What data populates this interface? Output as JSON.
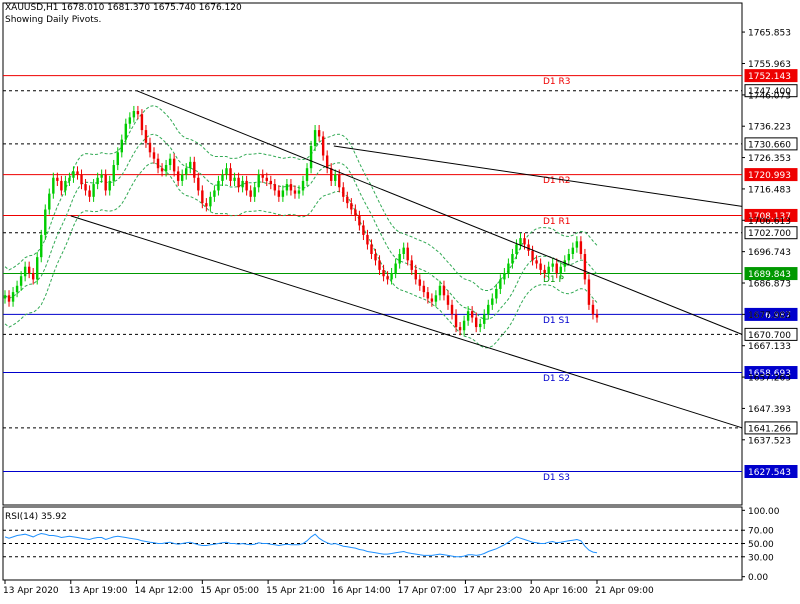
{
  "header": {
    "symbol_line": "XAUUSD,H1  1678.010 1681.370 1675.740 1676.120",
    "subtitle": "Showing Daily Pivots."
  },
  "colors": {
    "bull": "#00cc00",
    "bear": "#ee0000",
    "bands": "#33aa55",
    "resistance": "#ee0000",
    "support": "#0000cc",
    "pivot": "#009900",
    "trendline": "#000000"
  },
  "chart_data": [
    {
      "type": "candlestick",
      "title": "XAUUSD,H1",
      "ylim": [
        1617.0,
        1775.0
      ],
      "y_ticks": [
        "1765.853",
        "1755.963",
        "1746.073",
        "1736.223",
        "1726.353",
        "1716.483",
        "1706.613",
        "1696.743",
        "1686.873",
        "1677.003",
        "1667.133",
        "1657.263",
        "1647.393",
        "1637.523"
      ],
      "x_ticks": [
        "13 Apr 2020",
        "13 Apr 19:00",
        "14 Apr 12:00",
        "15 Apr 05:00",
        "15 Apr 21:00",
        "16 Apr 14:00",
        "17 Apr 07:00",
        "17 Apr 23:00",
        "20 Apr 16:00",
        "21 Apr 09:00"
      ],
      "close": [
        1683,
        1681,
        1684,
        1686,
        1689,
        1692,
        1690,
        1688,
        1695,
        1702,
        1710,
        1715,
        1720,
        1719,
        1716,
        1719,
        1720,
        1722,
        1721,
        1718,
        1716,
        1714,
        1718,
        1720,
        1721,
        1716,
        1719,
        1724,
        1728,
        1732,
        1737,
        1739,
        1741,
        1740,
        1735,
        1731,
        1728,
        1726,
        1723,
        1722,
        1724,
        1726,
        1722,
        1719,
        1721,
        1723,
        1725,
        1720,
        1716,
        1712,
        1711,
        1714,
        1716,
        1719,
        1721,
        1723,
        1719,
        1720,
        1717,
        1719,
        1716,
        1714,
        1717,
        1721,
        1720,
        1719,
        1718,
        1716,
        1714,
        1716,
        1718,
        1716,
        1715,
        1716,
        1719,
        1723,
        1730,
        1735,
        1733,
        1727,
        1723,
        1719,
        1721,
        1717,
        1714,
        1712,
        1710,
        1708,
        1705,
        1702,
        1699,
        1696,
        1694,
        1691,
        1689,
        1688,
        1690,
        1693,
        1696,
        1698,
        1694,
        1691,
        1688,
        1686,
        1684,
        1682,
        1681,
        1683,
        1686,
        1683,
        1680,
        1677,
        1673,
        1672,
        1675,
        1678,
        1676,
        1673,
        1674,
        1677,
        1680,
        1682,
        1685,
        1688,
        1690,
        1693,
        1696,
        1699,
        1701,
        1699,
        1697,
        1694,
        1693,
        1691,
        1690,
        1692,
        1693,
        1690,
        1692,
        1694,
        1696,
        1698,
        1700,
        1696,
        1688,
        1680,
        1677,
        1676
      ],
      "channel_lines": [
        {
          "from": [
            "14 Apr 12:00",
            1747.4
          ],
          "to": [
            "21 Apr 09:00+",
            1670.7
          ],
          "label": ""
        },
        {
          "from": [
            "13 Apr 19:00",
            1708.0
          ],
          "to": [
            "21 Apr 09:00+",
            1641.3
          ],
          "label": ""
        },
        {
          "from": [
            "16 Apr 14:00",
            1730.0
          ],
          "to": [
            "21 Apr 09:00+",
            1711.0
          ],
          "label": ""
        }
      ],
      "pivot_levels": [
        {
          "label": "D1 R3",
          "value": "1752.143",
          "y": 1752.143,
          "kind": "resistance"
        },
        {
          "label": "D1 R2",
          "value": "1720.993",
          "y": 1720.993,
          "kind": "resistance"
        },
        {
          "label": "D1 R1",
          "value": "1708.137",
          "y": 1708.137,
          "kind": "resistance"
        },
        {
          "label": "D1 P",
          "value": "1689.843",
          "y": 1689.843,
          "kind": "pivot"
        },
        {
          "label": "D1 S1",
          "value": "1676.987",
          "y": 1676.987,
          "kind": "support"
        },
        {
          "label": "D1 S2",
          "value": "1658.693",
          "y": 1658.693,
          "kind": "support"
        },
        {
          "label": "D1 S3",
          "value": "1627.543",
          "y": 1627.543,
          "kind": "support"
        }
      ],
      "dashed_levels": [
        {
          "value": "1747.400",
          "y": 1747.4
        },
        {
          "value": "1730.660",
          "y": 1730.66
        },
        {
          "value": "1702.700",
          "y": 1702.7
        },
        {
          "value": "1670.700",
          "y": 1670.7
        },
        {
          "value": "1641.266",
          "y": 1641.266
        }
      ],
      "bollinger_band_offset": 9,
      "grid": false
    },
    {
      "type": "line",
      "title": "RSI(14) 35.92",
      "ylim": [
        -5,
        105
      ],
      "y_ticks": [
        "100.00",
        "70.00",
        "50.00",
        "30.00",
        "0.00"
      ],
      "levels": [
        70,
        50,
        30
      ],
      "series": [
        {
          "values": [
            60,
            58,
            60,
            62,
            63,
            64,
            62,
            60,
            63,
            65,
            64,
            62,
            62,
            61,
            59,
            60,
            61,
            60,
            59,
            58,
            57,
            56,
            58,
            59,
            59,
            56,
            58,
            60,
            61,
            60,
            59,
            58,
            57,
            56,
            54,
            53,
            52,
            51,
            50,
            50,
            51,
            52,
            50,
            49,
            50,
            51,
            52,
            50,
            48,
            47,
            47,
            48,
            49,
            50,
            51,
            52,
            50,
            50,
            49,
            50,
            49,
            48,
            49,
            51,
            50,
            50,
            49,
            48,
            47,
            48,
            49,
            48,
            48,
            48,
            50,
            54,
            60,
            64,
            58,
            54,
            51,
            49,
            50,
            48,
            46,
            45,
            44,
            43,
            41,
            40,
            38,
            37,
            36,
            35,
            34,
            34,
            35,
            36,
            37,
            38,
            36,
            35,
            34,
            33,
            32,
            32,
            32,
            33,
            34,
            33,
            32,
            31,
            30,
            30,
            31,
            33,
            33,
            32,
            33,
            35,
            38,
            40,
            42,
            45,
            48,
            52,
            56,
            60,
            58,
            56,
            54,
            52,
            51,
            50,
            50,
            52,
            53,
            51,
            52,
            53,
            54,
            55,
            56,
            54,
            46,
            40,
            37,
            36
          ]
        }
      ]
    }
  ]
}
